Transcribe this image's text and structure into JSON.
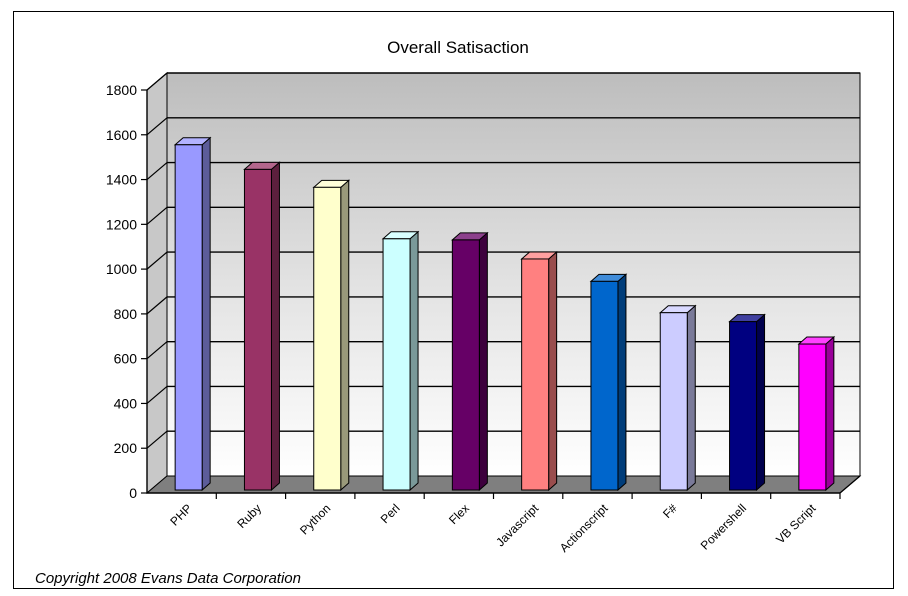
{
  "copyright": "Copyright 2008 Evans Data Corporation",
  "chart_data": {
    "type": "bar",
    "title": "Overall Satisaction",
    "xlabel": "",
    "ylabel": "",
    "ylim": [
      0,
      1800
    ],
    "yticks": [
      0,
      200,
      400,
      600,
      800,
      1000,
      1200,
      1400,
      1600,
      1800
    ],
    "grid": true,
    "legend": "none",
    "three_d": true,
    "categories": [
      "PHP",
      "Ruby",
      "Python",
      "Perl",
      "Flex",
      "Javascript",
      "Actionscript",
      "F#",
      "Powershell",
      "VB Script"
    ],
    "values": [
      1600,
      1490,
      1410,
      1180,
      1175,
      1090,
      990,
      850,
      810,
      710
    ],
    "colors": [
      "#9999ff",
      "#993366",
      "#ffffcc",
      "#ccffff",
      "#660066",
      "#ff8080",
      "#0066cc",
      "#ccccff",
      "#000080",
      "#ff00ff"
    ]
  }
}
